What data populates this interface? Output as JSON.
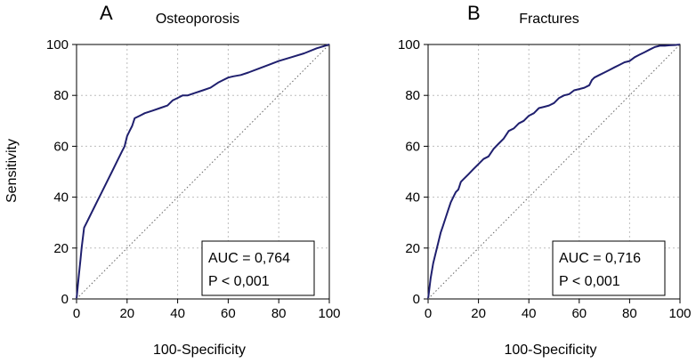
{
  "figure": {
    "ylabel_shared": "Sensitivity"
  },
  "chart_data": [
    {
      "type": "line",
      "panel_letter": "A",
      "title": "Osteoporosis",
      "xlabel": "100-Specificity",
      "ylabel": "Sensitivity",
      "xlim": [
        0,
        100
      ],
      "ylim": [
        0,
        100
      ],
      "xticks": [
        "0",
        "20",
        "40",
        "60",
        "80",
        "100"
      ],
      "yticks": [
        "0",
        "20",
        "40",
        "60",
        "80",
        "100"
      ],
      "grid": true,
      "series": [
        {
          "name": "ROC curve",
          "color": "#1f1f6e",
          "x": [
            0,
            0.5,
            1,
            1.5,
            2,
            3,
            4,
            5,
            6,
            7,
            8,
            10,
            12,
            14,
            16,
            18,
            19,
            20,
            21,
            22,
            23,
            25,
            27,
            30,
            33,
            36,
            38,
            40,
            42,
            44,
            47,
            50,
            53,
            56,
            58,
            60,
            62,
            65,
            68,
            72,
            76,
            80,
            85,
            90,
            95,
            100
          ],
          "y": [
            0,
            5,
            10,
            15,
            20,
            28,
            30,
            32,
            34,
            36,
            38,
            42,
            46,
            50,
            54,
            58,
            60,
            64,
            66,
            68,
            71,
            72,
            73,
            74,
            75,
            76,
            78,
            79,
            80,
            80,
            81,
            82,
            83,
            85,
            86,
            87,
            87.5,
            88,
            89,
            90.5,
            92,
            93.5,
            95,
            96.5,
            98.5,
            100
          ]
        },
        {
          "name": "Reference line",
          "color": "#666666",
          "x": [
            0,
            100
          ],
          "y": [
            0,
            100
          ]
        }
      ],
      "annotation": {
        "lines": [
          "AUC = 0,764",
          "P < 0,001"
        ],
        "placement": "bottom-right"
      }
    },
    {
      "type": "line",
      "panel_letter": "B",
      "title": "Fractures",
      "xlabel": "100-Specificity",
      "ylabel": "",
      "xlim": [
        0,
        100
      ],
      "ylim": [
        0,
        100
      ],
      "xticks": [
        "0",
        "20",
        "40",
        "60",
        "80",
        "100"
      ],
      "yticks": [
        "0",
        "20",
        "40",
        "60",
        "80",
        "100"
      ],
      "grid": true,
      "series": [
        {
          "name": "ROC curve",
          "color": "#1f1f6e",
          "x": [
            0,
            0.5,
            1,
            2,
            3,
            4,
            5,
            6,
            7,
            8,
            9,
            10,
            11,
            12,
            13,
            14,
            16,
            18,
            20,
            22,
            24,
            26,
            28,
            30,
            32,
            34,
            36,
            38,
            40,
            42,
            44,
            46,
            48,
            50,
            52,
            54,
            56,
            58,
            60,
            62,
            64,
            65,
            66,
            68,
            70,
            72,
            74,
            76,
            78,
            80,
            82,
            84,
            86,
            88,
            90,
            92,
            94,
            96,
            98,
            100
          ],
          "y": [
            0,
            4,
            8,
            14,
            18,
            22,
            26,
            29,
            32,
            35,
            38,
            40,
            42,
            43,
            46,
            47,
            49,
            51,
            53,
            55,
            56,
            59,
            61,
            63,
            66,
            67,
            69,
            70,
            72,
            73,
            75,
            75.5,
            76,
            77,
            79,
            80,
            80.5,
            82,
            82.5,
            83,
            84,
            86,
            87,
            88,
            89,
            90,
            91,
            92,
            93,
            93.5,
            95,
            96,
            97,
            98,
            99,
            99.5,
            99.5,
            99.7,
            99.8,
            100
          ]
        },
        {
          "name": "Reference line",
          "color": "#666666",
          "x": [
            0,
            100
          ],
          "y": [
            0,
            100
          ]
        }
      ],
      "annotation": {
        "lines": [
          "AUC = 0,716",
          "P < 0,001"
        ],
        "placement": "bottom-right"
      }
    }
  ]
}
